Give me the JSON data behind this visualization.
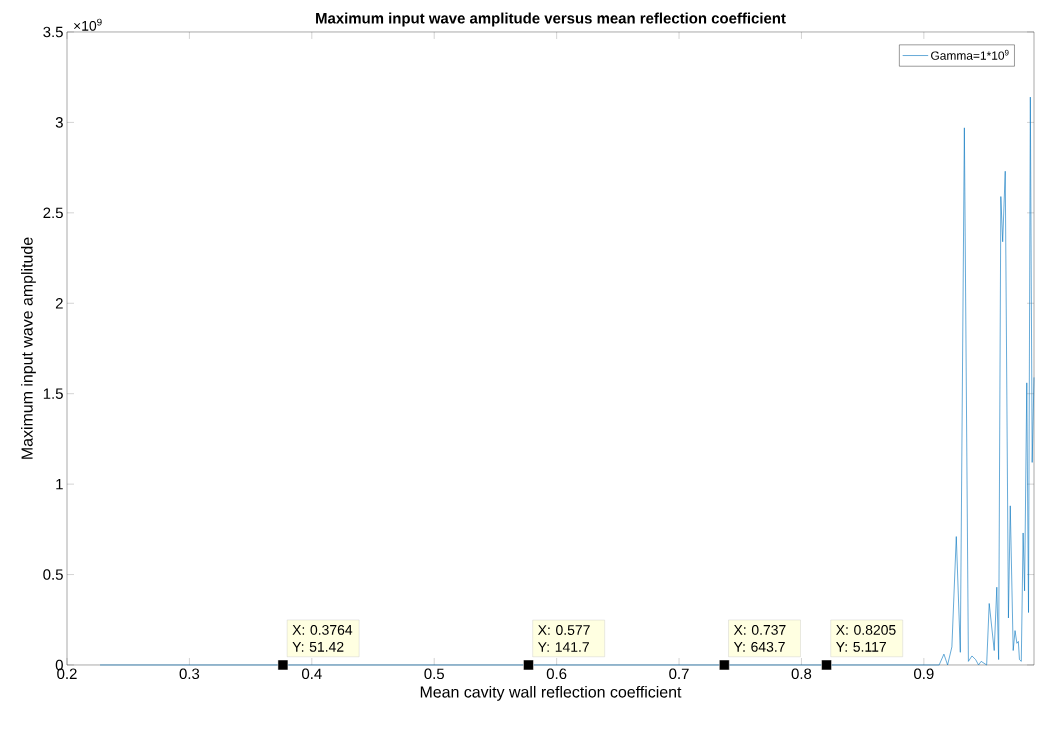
{
  "chart_data": {
    "type": "line",
    "title": "Maximum input wave amplitude versus mean reflection coefficient",
    "xlabel": "Mean cavity wall reflection coefficient",
    "ylabel": "Maximum input wave amplitude",
    "series": [
      {
        "name": "Gamma=1*10$^{9}$",
        "color": "#0072bd",
        "x": [
          0.227,
          0.3764,
          0.577,
          0.737,
          0.8205,
          0.9125,
          0.9164,
          0.9194,
          0.9229,
          0.9265,
          0.9298,
          0.9331,
          0.9364,
          0.9393,
          0.9423,
          0.9447,
          0.9468,
          0.9513,
          0.9534,
          0.9575,
          0.9596,
          0.9611,
          0.9629,
          0.9644,
          0.9665,
          0.9691,
          0.9706,
          0.973,
          0.9745,
          0.976,
          0.9772,
          0.9781,
          0.9796,
          0.9811,
          0.9823,
          0.9841,
          0.9855,
          0.987,
          0.9885,
          0.99
        ],
        "values": [
          0,
          0,
          0,
          0,
          0,
          0,
          0.06,
          0,
          0.1,
          0.71,
          0.07,
          2.97,
          0.02,
          0.05,
          0.03,
          0,
          0.02,
          0,
          0.34,
          0.08,
          0.43,
          0.03,
          2.59,
          2.34,
          2.73,
          0.26,
          0.88,
          0.08,
          0.19,
          0.12,
          0.13,
          0.03,
          0.02,
          0.73,
          0.41,
          1.56,
          0.29,
          3.14,
          1.12,
          1.59
        ]
      }
    ],
    "xlim": [
      0.2,
      0.99
    ],
    "xticks": [
      0.2,
      0.3,
      0.4,
      0.5,
      0.6,
      0.7,
      0.8,
      0.9
    ],
    "ylim": [
      0,
      3.5
    ],
    "yticks": [
      0,
      0.5,
      1,
      1.5,
      2,
      2.5,
      3,
      3.5
    ],
    "legend": "top right",
    "annotations": [
      "×10$^{9}$",
      {
        "text": "X: 0.3764 Y: 51.42",
        "x": 0.3764,
        "y": 0
      },
      {
        "text": "X: 0.577 Y: 141.7",
        "x": 0.577,
        "y": 0
      },
      {
        "text": "X: 0.737 Y: 643.7",
        "x": 0.737,
        "y": 0
      },
      {
        "text": "X: 0.8205 Y: 5.117",
        "x": 0.8205,
        "y": 0
      }
    ]
  }
}
